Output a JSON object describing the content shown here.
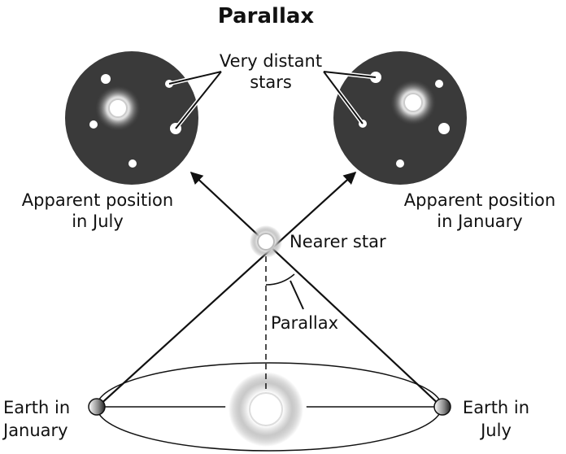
{
  "title": "Parallax",
  "labels": {
    "distant_stars": [
      "Very distant",
      "stars"
    ],
    "july_view": [
      "Apparent position",
      "in July"
    ],
    "january_view": [
      "Apparent position",
      "in January"
    ],
    "nearer_star": "Nearer star",
    "angle": "Parallax",
    "earth_january": [
      "Earth in",
      "January"
    ],
    "earth_july": [
      "Earth in",
      "July"
    ]
  }
}
